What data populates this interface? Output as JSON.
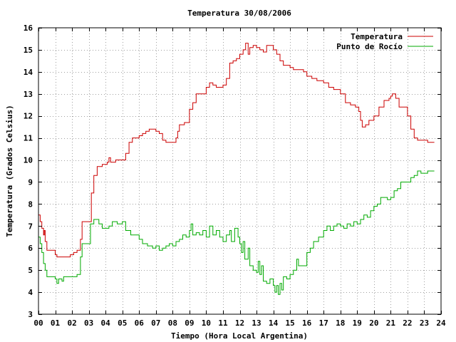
{
  "chart_data": {
    "type": "line",
    "title": "Temperatura 30/08/2006",
    "xlabel": "Tiempo (Hora Local Argentina)",
    "ylabel": "Temperatura (Grados Celsius)",
    "xlim": [
      0,
      24
    ],
    "ylim": [
      3,
      16
    ],
    "x_ticks": [
      "00",
      "01",
      "02",
      "03",
      "04",
      "05",
      "06",
      "07",
      "08",
      "09",
      "10",
      "11",
      "12",
      "13",
      "14",
      "15",
      "16",
      "17",
      "18",
      "19",
      "20",
      "21",
      "22",
      "23",
      "24"
    ],
    "y_ticks": [
      "3",
      "4",
      "5",
      "6",
      "7",
      "8",
      "9",
      "10",
      "11",
      "12",
      "13",
      "14",
      "15",
      "16"
    ],
    "grid": true,
    "legend_position": "top-right",
    "series": [
      {
        "name": "Temperatura",
        "color": "#cc0000",
        "points": [
          [
            0.0,
            7.5
          ],
          [
            0.1,
            7.2
          ],
          [
            0.2,
            6.9
          ],
          [
            0.3,
            6.6
          ],
          [
            0.35,
            6.8
          ],
          [
            0.4,
            6.3
          ],
          [
            0.5,
            5.9
          ],
          [
            0.8,
            5.9
          ],
          [
            1.0,
            5.7
          ],
          [
            1.1,
            5.6
          ],
          [
            1.5,
            5.6
          ],
          [
            1.9,
            5.7
          ],
          [
            2.1,
            5.8
          ],
          [
            2.3,
            5.9
          ],
          [
            2.5,
            6.4
          ],
          [
            2.6,
            7.2
          ],
          [
            3.0,
            7.2
          ],
          [
            3.15,
            8.5
          ],
          [
            3.3,
            9.3
          ],
          [
            3.5,
            9.7
          ],
          [
            3.8,
            9.8
          ],
          [
            4.1,
            9.9
          ],
          [
            4.2,
            10.1
          ],
          [
            4.3,
            9.9
          ],
          [
            4.6,
            10.0
          ],
          [
            5.0,
            10.0
          ],
          [
            5.2,
            10.3
          ],
          [
            5.4,
            10.8
          ],
          [
            5.6,
            11.0
          ],
          [
            6.0,
            11.1
          ],
          [
            6.2,
            11.2
          ],
          [
            6.4,
            11.3
          ],
          [
            6.6,
            11.4
          ],
          [
            7.0,
            11.3
          ],
          [
            7.2,
            11.2
          ],
          [
            7.4,
            10.9
          ],
          [
            7.6,
            10.8
          ],
          [
            8.0,
            10.8
          ],
          [
            8.2,
            11.0
          ],
          [
            8.3,
            11.3
          ],
          [
            8.4,
            11.6
          ],
          [
            8.7,
            11.7
          ],
          [
            9.0,
            12.3
          ],
          [
            9.2,
            12.6
          ],
          [
            9.4,
            13.0
          ],
          [
            9.7,
            13.0
          ],
          [
            10.0,
            13.3
          ],
          [
            10.2,
            13.5
          ],
          [
            10.4,
            13.4
          ],
          [
            10.6,
            13.3
          ],
          [
            10.8,
            13.3
          ],
          [
            11.0,
            13.4
          ],
          [
            11.2,
            13.7
          ],
          [
            11.4,
            14.4
          ],
          [
            11.6,
            14.5
          ],
          [
            11.8,
            14.6
          ],
          [
            12.0,
            14.8
          ],
          [
            12.2,
            15.0
          ],
          [
            12.35,
            15.3
          ],
          [
            12.5,
            14.8
          ],
          [
            12.6,
            15.1
          ],
          [
            12.8,
            15.2
          ],
          [
            13.0,
            15.1
          ],
          [
            13.2,
            15.0
          ],
          [
            13.4,
            14.9
          ],
          [
            13.6,
            15.2
          ],
          [
            14.0,
            15.0
          ],
          [
            14.2,
            14.8
          ],
          [
            14.4,
            14.5
          ],
          [
            14.6,
            14.3
          ],
          [
            15.0,
            14.2
          ],
          [
            15.2,
            14.1
          ],
          [
            15.5,
            14.1
          ],
          [
            15.8,
            14.0
          ],
          [
            16.0,
            13.8
          ],
          [
            16.3,
            13.7
          ],
          [
            16.6,
            13.6
          ],
          [
            17.0,
            13.5
          ],
          [
            17.3,
            13.3
          ],
          [
            17.6,
            13.2
          ],
          [
            18.0,
            13.0
          ],
          [
            18.3,
            12.6
          ],
          [
            18.6,
            12.5
          ],
          [
            18.9,
            12.4
          ],
          [
            19.1,
            12.2
          ],
          [
            19.2,
            11.8
          ],
          [
            19.3,
            11.5
          ],
          [
            19.5,
            11.6
          ],
          [
            19.7,
            11.8
          ],
          [
            20.0,
            12.0
          ],
          [
            20.1,
            12.0
          ],
          [
            20.3,
            12.4
          ],
          [
            20.6,
            12.7
          ],
          [
            20.9,
            12.8
          ],
          [
            21.0,
            12.9
          ],
          [
            21.1,
            13.0
          ],
          [
            21.3,
            12.8
          ],
          [
            21.5,
            12.4
          ],
          [
            21.8,
            12.4
          ],
          [
            22.0,
            12.0
          ],
          [
            22.2,
            11.4
          ],
          [
            22.4,
            11.0
          ],
          [
            22.6,
            10.9
          ],
          [
            23.0,
            10.9
          ],
          [
            23.2,
            10.8
          ],
          [
            23.6,
            10.8
          ]
        ]
      },
      {
        "name": "Punto de Rocío",
        "color": "#00aa00",
        "points": [
          [
            0.0,
            6.5
          ],
          [
            0.1,
            6.2
          ],
          [
            0.2,
            5.8
          ],
          [
            0.3,
            5.3
          ],
          [
            0.4,
            5.0
          ],
          [
            0.5,
            4.7
          ],
          [
            0.8,
            4.7
          ],
          [
            1.0,
            4.6
          ],
          [
            1.1,
            4.4
          ],
          [
            1.2,
            4.6
          ],
          [
            1.4,
            4.5
          ],
          [
            1.5,
            4.7
          ],
          [
            2.0,
            4.7
          ],
          [
            2.3,
            4.8
          ],
          [
            2.5,
            5.6
          ],
          [
            2.6,
            6.2
          ],
          [
            3.0,
            6.2
          ],
          [
            3.1,
            7.1
          ],
          [
            3.3,
            7.3
          ],
          [
            3.6,
            7.1
          ],
          [
            3.8,
            6.9
          ],
          [
            4.2,
            7.0
          ],
          [
            4.4,
            7.2
          ],
          [
            4.7,
            7.1
          ],
          [
            5.0,
            7.2
          ],
          [
            5.2,
            6.8
          ],
          [
            5.5,
            6.6
          ],
          [
            5.8,
            6.6
          ],
          [
            6.0,
            6.4
          ],
          [
            6.2,
            6.2
          ],
          [
            6.5,
            6.1
          ],
          [
            6.8,
            6.0
          ],
          [
            7.0,
            6.1
          ],
          [
            7.2,
            5.9
          ],
          [
            7.4,
            6.0
          ],
          [
            7.6,
            6.1
          ],
          [
            7.8,
            6.2
          ],
          [
            8.0,
            6.1
          ],
          [
            8.2,
            6.3
          ],
          [
            8.4,
            6.4
          ],
          [
            8.6,
            6.6
          ],
          [
            8.8,
            6.5
          ],
          [
            9.0,
            6.8
          ],
          [
            9.1,
            7.1
          ],
          [
            9.2,
            6.6
          ],
          [
            9.4,
            6.7
          ],
          [
            9.6,
            6.6
          ],
          [
            9.8,
            6.8
          ],
          [
            10.0,
            6.5
          ],
          [
            10.2,
            7.0
          ],
          [
            10.4,
            6.6
          ],
          [
            10.6,
            6.8
          ],
          [
            10.8,
            6.5
          ],
          [
            11.0,
            6.3
          ],
          [
            11.2,
            6.6
          ],
          [
            11.4,
            6.8
          ],
          [
            11.5,
            6.3
          ],
          [
            11.7,
            6.9
          ],
          [
            11.9,
            6.5
          ],
          [
            12.0,
            6.2
          ],
          [
            12.1,
            5.8
          ],
          [
            12.2,
            6.3
          ],
          [
            12.3,
            5.5
          ],
          [
            12.5,
            6.0
          ],
          [
            12.6,
            5.2
          ],
          [
            12.8,
            5.0
          ],
          [
            13.0,
            4.9
          ],
          [
            13.1,
            5.4
          ],
          [
            13.2,
            4.8
          ],
          [
            13.3,
            5.2
          ],
          [
            13.4,
            4.5
          ],
          [
            13.6,
            4.4
          ],
          [
            13.8,
            4.6
          ],
          [
            14.0,
            4.3
          ],
          [
            14.1,
            4.0
          ],
          [
            14.2,
            4.3
          ],
          [
            14.3,
            3.9
          ],
          [
            14.4,
            4.4
          ],
          [
            14.5,
            4.1
          ],
          [
            14.6,
            4.7
          ],
          [
            14.8,
            4.6
          ],
          [
            15.0,
            4.8
          ],
          [
            15.2,
            5.0
          ],
          [
            15.4,
            5.5
          ],
          [
            15.5,
            5.2
          ],
          [
            15.8,
            5.2
          ],
          [
            16.0,
            5.8
          ],
          [
            16.2,
            6.0
          ],
          [
            16.4,
            6.3
          ],
          [
            16.7,
            6.5
          ],
          [
            17.0,
            6.8
          ],
          [
            17.2,
            7.0
          ],
          [
            17.4,
            6.8
          ],
          [
            17.6,
            7.0
          ],
          [
            17.8,
            7.1
          ],
          [
            18.0,
            7.0
          ],
          [
            18.2,
            6.9
          ],
          [
            18.4,
            7.1
          ],
          [
            18.6,
            7.0
          ],
          [
            18.8,
            7.2
          ],
          [
            19.0,
            7.1
          ],
          [
            19.2,
            7.3
          ],
          [
            19.4,
            7.5
          ],
          [
            19.6,
            7.4
          ],
          [
            19.8,
            7.7
          ],
          [
            20.0,
            7.9
          ],
          [
            20.2,
            8.0
          ],
          [
            20.4,
            8.3
          ],
          [
            20.6,
            8.3
          ],
          [
            20.8,
            8.2
          ],
          [
            21.0,
            8.3
          ],
          [
            21.2,
            8.6
          ],
          [
            21.4,
            8.7
          ],
          [
            21.6,
            9.0
          ],
          [
            22.0,
            9.0
          ],
          [
            22.2,
            9.2
          ],
          [
            22.4,
            9.3
          ],
          [
            22.6,
            9.5
          ],
          [
            22.8,
            9.4
          ],
          [
            23.0,
            9.4
          ],
          [
            23.2,
            9.5
          ],
          [
            23.4,
            9.5
          ],
          [
            23.6,
            9.5
          ]
        ]
      }
    ]
  }
}
